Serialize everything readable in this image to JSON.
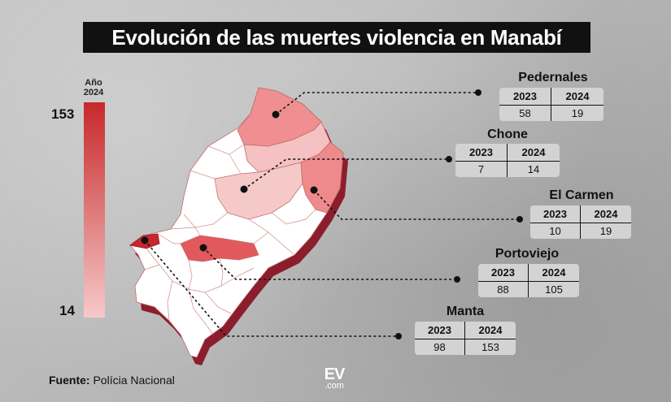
{
  "title": "Evolución de las muertes violencia en Manabí",
  "legend": {
    "year_label_1": "Año",
    "year_label_2": "2024",
    "max": "153",
    "min": "14",
    "color_max": "#c8282a",
    "color_min": "#f6c9c9"
  },
  "table_headers": {
    "year_a": "2023",
    "year_b": "2024"
  },
  "cantons": [
    {
      "name": "Pedernales",
      "y2023": "58",
      "y2024": "19"
    },
    {
      "name": "Chone",
      "y2023": "7",
      "y2024": "14"
    },
    {
      "name": "El Carmen",
      "y2023": "10",
      "y2024": "19"
    },
    {
      "name": "Portoviejo",
      "y2023": "88",
      "y2024": "105"
    },
    {
      "name": "Manta",
      "y2023": "98",
      "y2024": "153"
    }
  ],
  "source": {
    "label": "Fuente:",
    "value": "Polícia Nacional"
  },
  "logo": {
    "main": "EV",
    "sub": ".com"
  }
}
